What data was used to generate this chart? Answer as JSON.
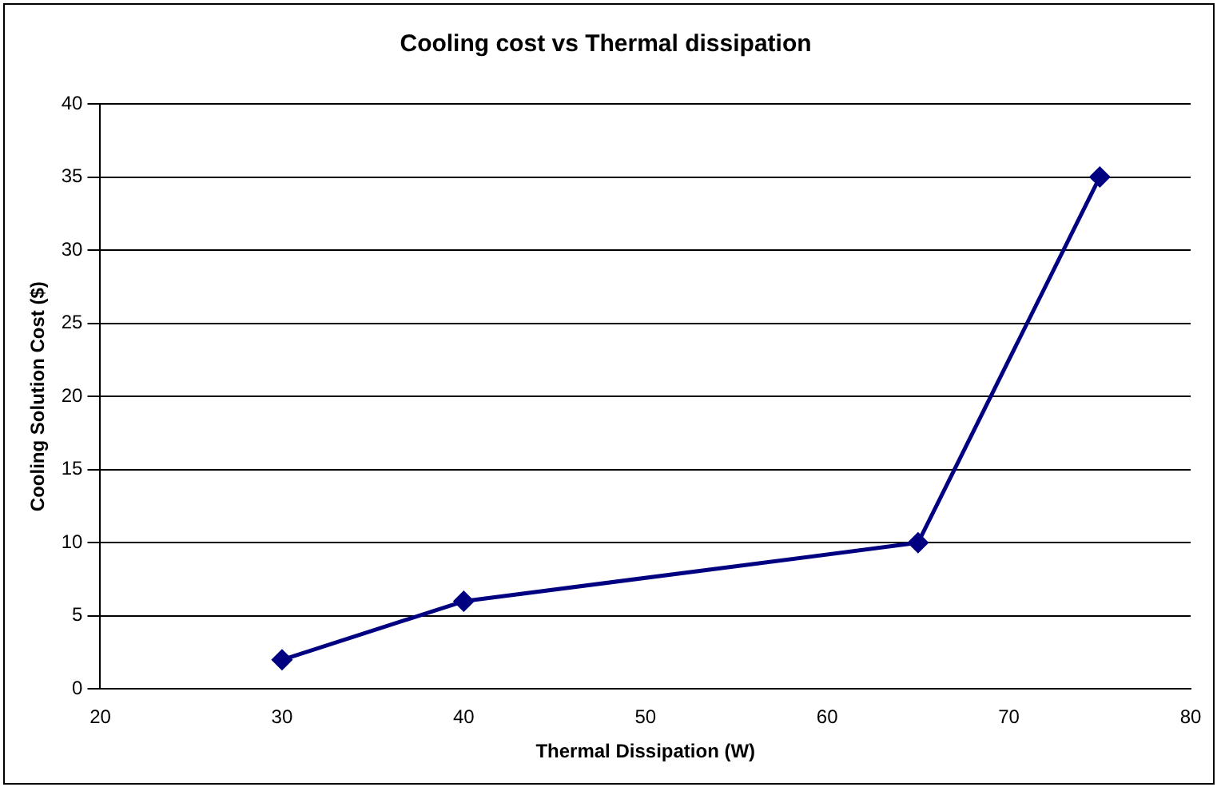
{
  "chart_data": {
    "type": "line",
    "title": "Cooling cost vs Thermal dissipation",
    "xlabel": "Thermal Dissipation (W)",
    "ylabel": "Cooling Solution Cost ($)",
    "x": [
      30,
      40,
      65,
      75
    ],
    "series": [
      {
        "color": "#000080",
        "values": [
          2,
          6,
          10,
          35
        ]
      }
    ],
    "xlim": [
      20,
      80
    ],
    "xticks": [
      20,
      30,
      40,
      50,
      60,
      70,
      80
    ],
    "ylim": [
      0,
      40
    ],
    "yticks": [
      0,
      5,
      10,
      15,
      20,
      25,
      30,
      35,
      40
    ],
    "grid": "y",
    "legend": false,
    "marker": "diamond",
    "line_style": "solid"
  }
}
